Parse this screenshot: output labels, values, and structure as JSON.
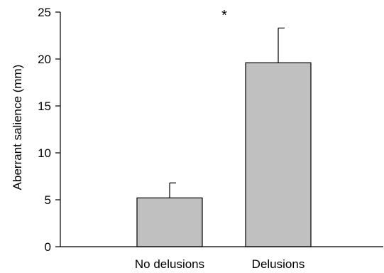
{
  "chart_data": {
    "type": "bar",
    "title": "",
    "xlabel": "",
    "ylabel": "Aberrant salience (mm)",
    "categories": [
      "No delusions",
      "Delusions"
    ],
    "values": [
      5.2,
      19.6
    ],
    "error_upper": [
      6.8,
      23.3
    ],
    "ylim": [
      0,
      25
    ],
    "yticks": [
      "0",
      "5",
      "10",
      "15",
      "20",
      "25"
    ],
    "grid": false,
    "legend": "none",
    "annotation": "*",
    "colors": {
      "bar_fill": "#c0c0c0",
      "bar_stroke": "#000000",
      "axis": "#000000"
    }
  }
}
